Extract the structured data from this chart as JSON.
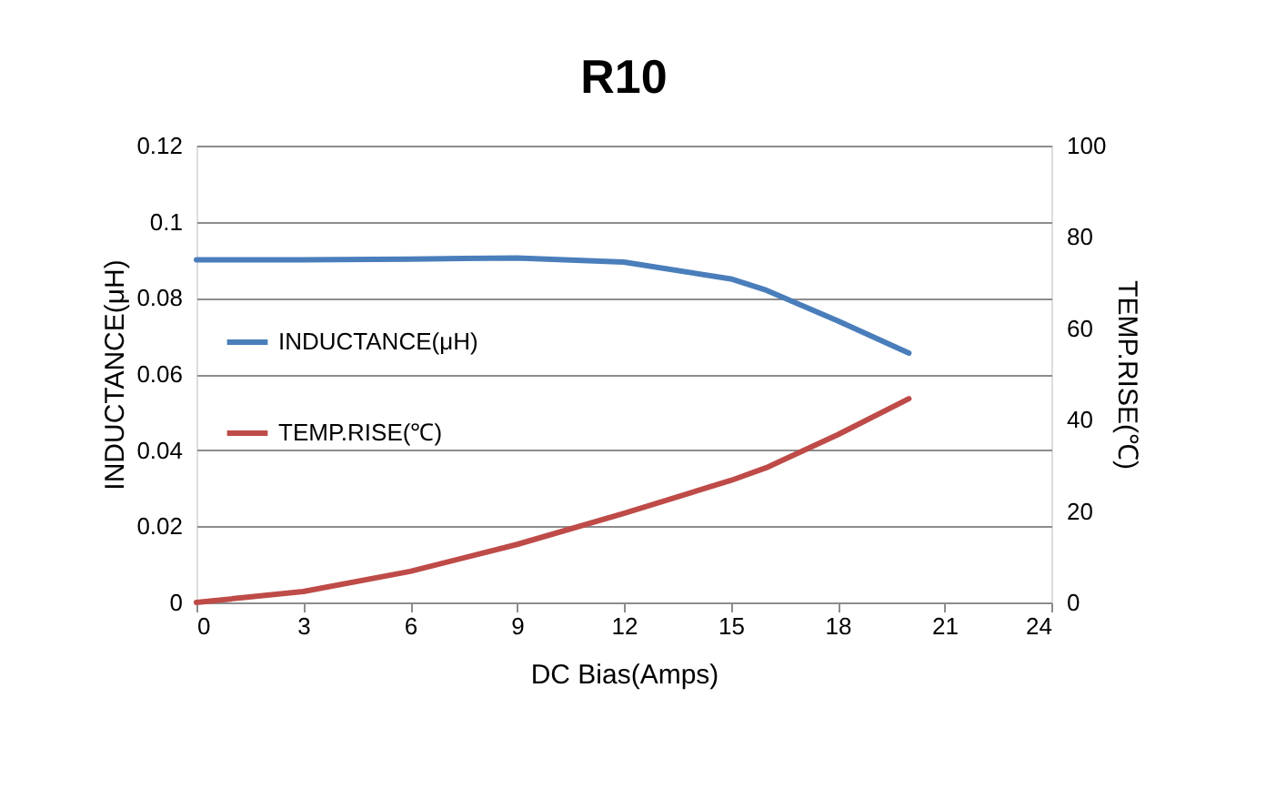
{
  "chart_data": {
    "type": "line",
    "title": "R10",
    "xlabel": "DC Bias(Amps)",
    "ylabel": "INDUCTANCE(μH)",
    "y2label": "TEMP.RISE(℃)",
    "x": [
      0,
      3,
      6,
      9,
      12,
      15,
      16,
      18,
      20
    ],
    "series": [
      {
        "name": "INDUCTANCE(μH)",
        "color": "#4a7ebb",
        "values": [
          0.09,
          0.09,
          0.0902,
          0.0905,
          0.0894,
          0.085,
          0.082,
          0.074,
          0.0655
        ]
      },
      {
        "name": "TEMP.RISE(℃)",
        "color": "#be4b48",
        "axis": "y2",
        "values": [
          0,
          2.4,
          6.8,
          12.7,
          19.5,
          26.7,
          29.5,
          36.7,
          44.6
        ]
      }
    ],
    "xlim": [
      0,
      24
    ],
    "xticks": [
      0,
      3,
      6,
      9,
      12,
      15,
      18,
      21,
      24
    ],
    "ylim": [
      0,
      0.12
    ],
    "yticks": [
      0,
      0.02,
      0.04,
      0.06,
      0.08,
      0.1,
      0.12
    ],
    "y2lim": [
      0,
      100
    ],
    "y2ticks": [
      0,
      20,
      40,
      60,
      80,
      100
    ],
    "grid": "y",
    "legend": "left",
    "marker": "none",
    "line_style": "solid"
  }
}
